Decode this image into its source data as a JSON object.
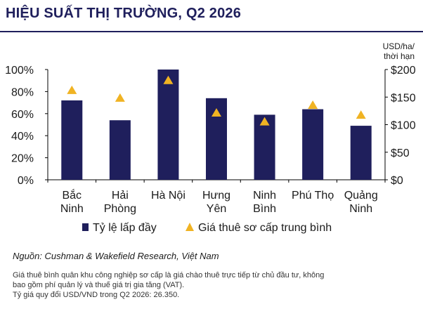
{
  "title": "HIỆU SUẤT THỊ TRƯỜNG, Q2 2026",
  "colors": {
    "bar": "#1f1f5c",
    "marker": "#f0b323",
    "title": "#1f1f5c"
  },
  "chart_data": {
    "type": "bar",
    "categories": [
      [
        "Bắc",
        "Ninh"
      ],
      [
        "Hải",
        "Phòng"
      ],
      [
        "Hà Nội"
      ],
      [
        "Hưng",
        "Yên"
      ],
      [
        "Ninh",
        "Bình"
      ],
      [
        "Phú Thọ"
      ],
      [
        "Quảng",
        "Ninh"
      ]
    ],
    "series": [
      {
        "name": "Tỷ lệ lấp đầy",
        "type": "bar",
        "axis": "left",
        "values": [
          72,
          54,
          100,
          74,
          59,
          64,
          49
        ]
      },
      {
        "name": "Giá thuê sơ cấp trung bình",
        "type": "scatter",
        "marker": "triangle",
        "axis": "right",
        "values": [
          162,
          148,
          180,
          121,
          105,
          135,
          117
        ]
      }
    ],
    "y_left": {
      "ticks": [
        "0%",
        "20%",
        "40%",
        "60%",
        "80%",
        "100%"
      ],
      "lim": [
        0,
        100
      ]
    },
    "y_right": {
      "ticks": [
        "$0",
        "$50",
        "$100",
        "$150",
        "$200"
      ],
      "lim": [
        0,
        200
      ],
      "label": [
        "USD/ha/",
        "thời hạn"
      ]
    },
    "legend_position": "bottom",
    "grid": false
  },
  "source": "Nguồn: Cushman & Wakefield Research, Việt Nam",
  "notes": [
    "Giá thuê bình quân khu công nghiệp sơ cấp là giá chào thuê trực tiếp từ chủ đầu tư, không",
    "bao gồm phí quản lý và thuế giá trị gia tăng (VAT).",
    "Tỷ giá quy đổi USD/VND trong Q2 2026: 26.350."
  ]
}
